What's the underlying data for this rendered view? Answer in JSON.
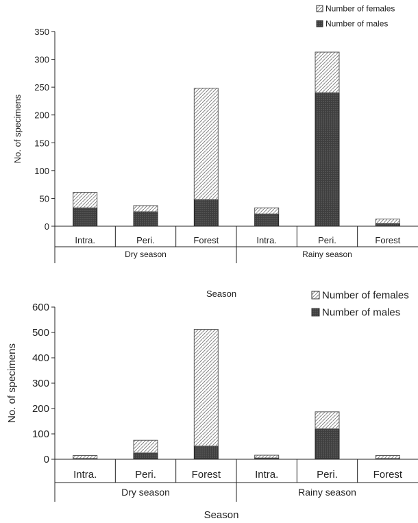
{
  "chart_data": [
    {
      "type": "bar",
      "stacked": true,
      "categories": [
        "Intra.",
        "Peri.",
        "Forest",
        "Intra.",
        "Peri.",
        "Forest"
      ],
      "groups": [
        {
          "label": "Dry season",
          "categories": [
            "Intra.",
            "Peri.",
            "Forest"
          ]
        },
        {
          "label": "Rainy season",
          "categories": [
            "Intra.",
            "Peri.",
            "Forest"
          ]
        }
      ],
      "series": [
        {
          "name": "Number of males",
          "values": [
            33,
            26,
            48,
            22,
            240,
            5
          ]
        },
        {
          "name": "Number of females",
          "values": [
            28,
            11,
            200,
            11,
            73,
            8
          ]
        }
      ],
      "ylabel": "No. of specimens",
      "xlabel": "Season",
      "ylim": [
        0,
        350
      ],
      "yticks": [
        0,
        50,
        100,
        150,
        200,
        250,
        300,
        350
      ],
      "legend": [
        "Number of females",
        "Number of males"
      ],
      "legend_position": "top-right",
      "grid": false
    },
    {
      "type": "bar",
      "stacked": true,
      "categories": [
        "Intra.",
        "Peri.",
        "Forest",
        "Intra.",
        "Peri.",
        "Forest"
      ],
      "groups": [
        {
          "label": "Dry season",
          "categories": [
            "Intra.",
            "Peri.",
            "Forest"
          ]
        },
        {
          "label": "Rainy season",
          "categories": [
            "Intra.",
            "Peri.",
            "Forest"
          ]
        }
      ],
      "series": [
        {
          "name": "Number of males",
          "values": [
            3,
            25,
            52,
            5,
            120,
            3
          ]
        },
        {
          "name": "Number of females",
          "values": [
            12,
            50,
            460,
            11,
            67,
            12
          ]
        }
      ],
      "ylabel": "No. of specimens",
      "xlabel": "Season",
      "ylim": [
        0,
        600
      ],
      "yticks": [
        0,
        100,
        200,
        300,
        400,
        500,
        600
      ],
      "legend": [
        "Number of females",
        "Number of males"
      ],
      "legend_position": "top-right",
      "grid": false
    }
  ]
}
